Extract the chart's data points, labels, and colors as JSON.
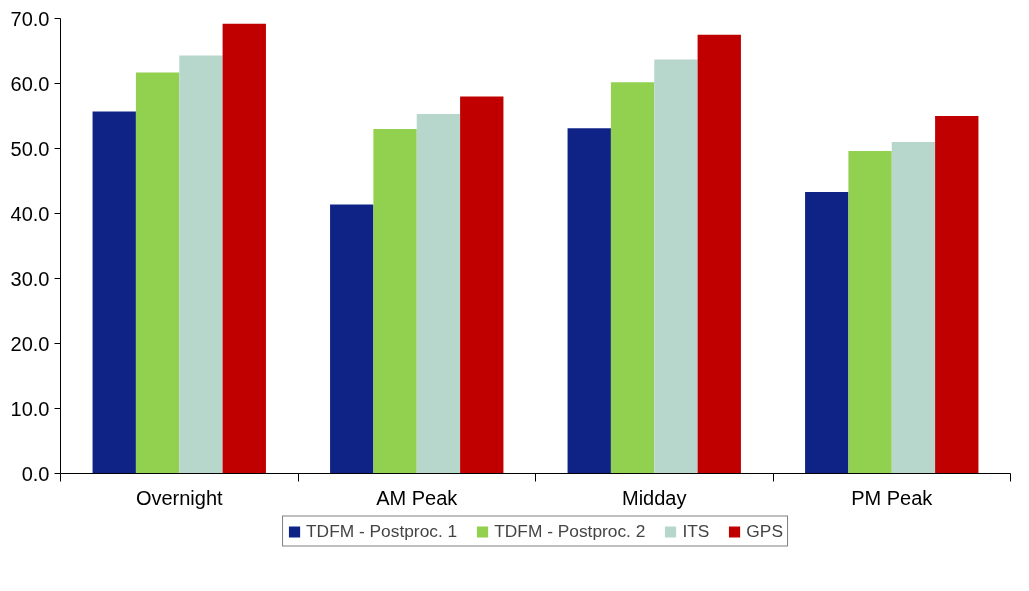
{
  "chart_data": {
    "type": "bar",
    "categories": [
      "Overnight",
      "AM Peak",
      "Midday",
      "PM Peak"
    ],
    "series": [
      {
        "name": "TDFM - Postproc. 1",
        "color": "#0f2387",
        "values": [
          55.7,
          41.4,
          53.1,
          43.3
        ]
      },
      {
        "name": "TDFM - Postproc. 2",
        "color": "#92d050",
        "values": [
          61.7,
          53.0,
          60.2,
          49.6
        ]
      },
      {
        "name": "ITS",
        "color": "#b8d7cc",
        "values": [
          64.3,
          55.3,
          63.7,
          51.0
        ]
      },
      {
        "name": "GPS",
        "color": "#c00000",
        "values": [
          69.2,
          58.0,
          67.5,
          55.0
        ]
      }
    ],
    "ylim": [
      0,
      70
    ],
    "yticks": [
      {
        "value": 0,
        "label": "0.0"
      },
      {
        "value": 10,
        "label": "10.0"
      },
      {
        "value": 20,
        "label": "20.0"
      },
      {
        "value": 30,
        "label": "30.0"
      },
      {
        "value": 40,
        "label": "40.0"
      },
      {
        "value": 50,
        "label": "50.0"
      },
      {
        "value": 60,
        "label": "60.0"
      },
      {
        "value": 70,
        "label": "70.0"
      }
    ],
    "grid": false,
    "legend": "bottom"
  }
}
